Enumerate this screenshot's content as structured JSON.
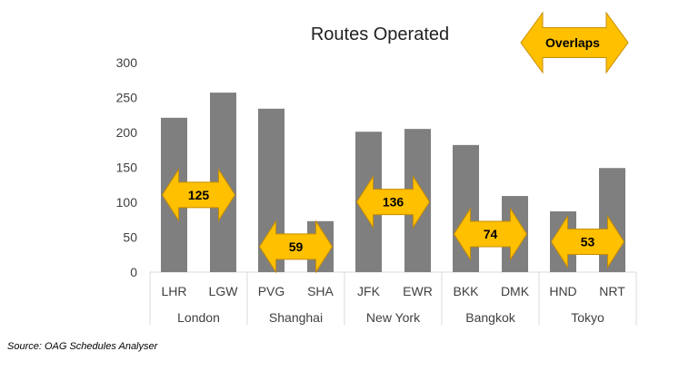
{
  "chart_data": {
    "type": "bar",
    "title": "Routes Operated",
    "ylim": [
      0,
      300
    ],
    "yticks": [
      0,
      50,
      100,
      150,
      200,
      250,
      300
    ],
    "grid": false,
    "bar_color": "#7f7f7f",
    "categories": [
      "LHR",
      "LGW",
      "PVG",
      "SHA",
      "JFK",
      "EWR",
      "BKK",
      "DMK",
      "HND",
      "NRT"
    ],
    "values": [
      221,
      257,
      234,
      73,
      201,
      205,
      182,
      109,
      87,
      149
    ],
    "groups": [
      {
        "name": "London",
        "members": [
          "LHR",
          "LGW"
        ],
        "overlap": "125"
      },
      {
        "name": "Shanghai",
        "members": [
          "PVG",
          "SHA"
        ],
        "overlap": "59"
      },
      {
        "name": "New York",
        "members": [
          "JFK",
          "EWR"
        ],
        "overlap": "136"
      },
      {
        "name": "Bangkok",
        "members": [
          "BKK",
          "DMK"
        ],
        "overlap": "74"
      },
      {
        "name": "Tokyo",
        "members": [
          "HND",
          "NRT"
        ],
        "overlap": "53"
      }
    ],
    "legend": {
      "label": "Overlaps",
      "placement": "top-right",
      "color": "#ffc000"
    }
  },
  "source_note": "Source: OAG Schedules Analyser",
  "colors": {
    "arrow_fill": "#ffc000",
    "arrow_stroke": "#c78d00",
    "axis": "#d9d9d9",
    "text": "#404040"
  }
}
